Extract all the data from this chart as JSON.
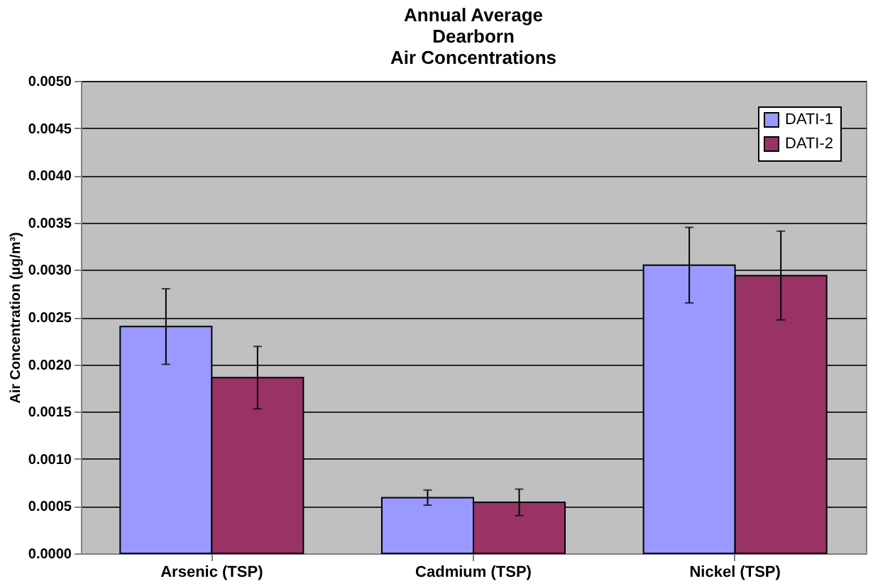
{
  "chart_data": {
    "type": "bar",
    "title": [
      "Annual Average",
      "Dearborn",
      "Air Concentrations"
    ],
    "ylabel": "Air Concentration (µg/m³)",
    "categories": [
      "Arsenic (TSP)",
      "Cadmium (TSP)",
      "Nickel (TSP)"
    ],
    "series": [
      {
        "name": "DATI-1",
        "color": "#9999ff",
        "values": [
          0.0024,
          0.00059,
          0.00305
        ],
        "errors": [
          0.0004,
          8e-05,
          0.0004
        ]
      },
      {
        "name": "DATI-2",
        "color": "#993366",
        "values": [
          0.00186,
          0.00054,
          0.00294
        ],
        "errors": [
          0.00033,
          0.00014,
          0.00047
        ]
      }
    ],
    "ylim": [
      0,
      0.005
    ],
    "yticks": [
      {
        "value": 0,
        "label": "0.0000"
      },
      {
        "value": 0.0005,
        "label": "0.0005"
      },
      {
        "value": 0.001,
        "label": "0.0010"
      },
      {
        "value": 0.0015,
        "label": "0.0015"
      },
      {
        "value": 0.002,
        "label": "0.0020"
      },
      {
        "value": 0.0025,
        "label": "0.0025"
      },
      {
        "value": 0.003,
        "label": "0.0030"
      },
      {
        "value": 0.0035,
        "label": "0.0035"
      },
      {
        "value": 0.004,
        "label": "0.0040"
      },
      {
        "value": 0.0045,
        "label": "0.0045"
      },
      {
        "value": 0.005,
        "label": "0.0050"
      }
    ],
    "grid": "y",
    "legend": "top right"
  }
}
